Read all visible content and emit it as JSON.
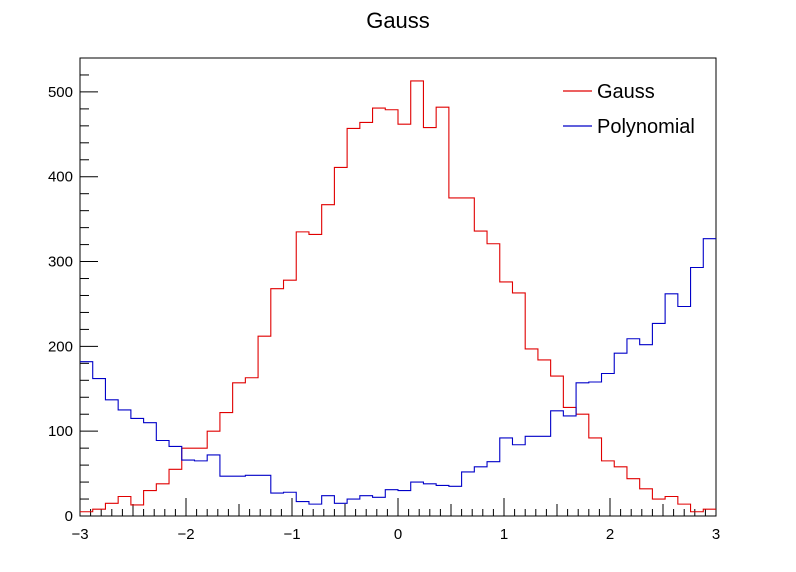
{
  "chart_data": {
    "type": "line",
    "title": "Gauss",
    "xlabel": "",
    "ylabel": "",
    "xlim": [
      -3,
      3
    ],
    "ylim": [
      0,
      540
    ],
    "grid": false,
    "legend_position": "top-right",
    "x_ticks": [
      "−3",
      "−2",
      "−1",
      "0",
      "1",
      "2",
      "3"
    ],
    "y_ticks": [
      "0",
      "100",
      "200",
      "300",
      "400",
      "500"
    ],
    "bin_edges": [
      -3,
      -2.88,
      -2.76,
      -2.64,
      -2.52,
      -2.4,
      -2.28,
      -2.16,
      -2.04,
      -1.92,
      -1.8,
      -1.68,
      -1.56,
      -1.44,
      -1.32,
      -1.2,
      -1.08,
      -0.96,
      -0.84,
      -0.72,
      -0.6,
      -0.48,
      -0.36,
      -0.24,
      -0.12,
      0,
      0.12,
      0.24,
      0.36,
      0.48,
      0.6,
      0.72,
      0.84,
      0.96,
      1.08,
      1.2,
      1.32,
      1.44,
      1.56,
      1.68,
      1.8,
      1.92,
      2.04,
      2.16,
      2.28,
      2.4,
      2.52,
      2.64,
      2.76,
      2.88,
      3
    ],
    "series": [
      {
        "name": "Gauss",
        "color": "#e00000",
        "values": [
          5,
          8,
          15,
          23,
          13,
          30,
          38,
          55,
          80,
          80,
          100,
          122,
          157,
          163,
          212,
          268,
          278,
          335,
          332,
          367,
          411,
          457,
          464,
          481,
          479,
          462,
          513,
          458,
          482,
          375,
          375,
          336,
          321,
          276,
          263,
          197,
          184,
          165,
          128,
          120,
          92,
          65,
          58,
          44,
          32,
          20,
          23,
          14,
          5,
          8
        ]
      },
      {
        "name": "Polynomial",
        "color": "#0000c8",
        "values": [
          182,
          162,
          137,
          125,
          115,
          110,
          89,
          82,
          66,
          65,
          72,
          47,
          47,
          48,
          48,
          27,
          28,
          17,
          14,
          24,
          15,
          20,
          24,
          22,
          31,
          30,
          40,
          38,
          36,
          35,
          52,
          58,
          64,
          92,
          84,
          94,
          94,
          124,
          118,
          157,
          158,
          168,
          192,
          209,
          202,
          227,
          262,
          247,
          293,
          327
        ]
      }
    ]
  }
}
